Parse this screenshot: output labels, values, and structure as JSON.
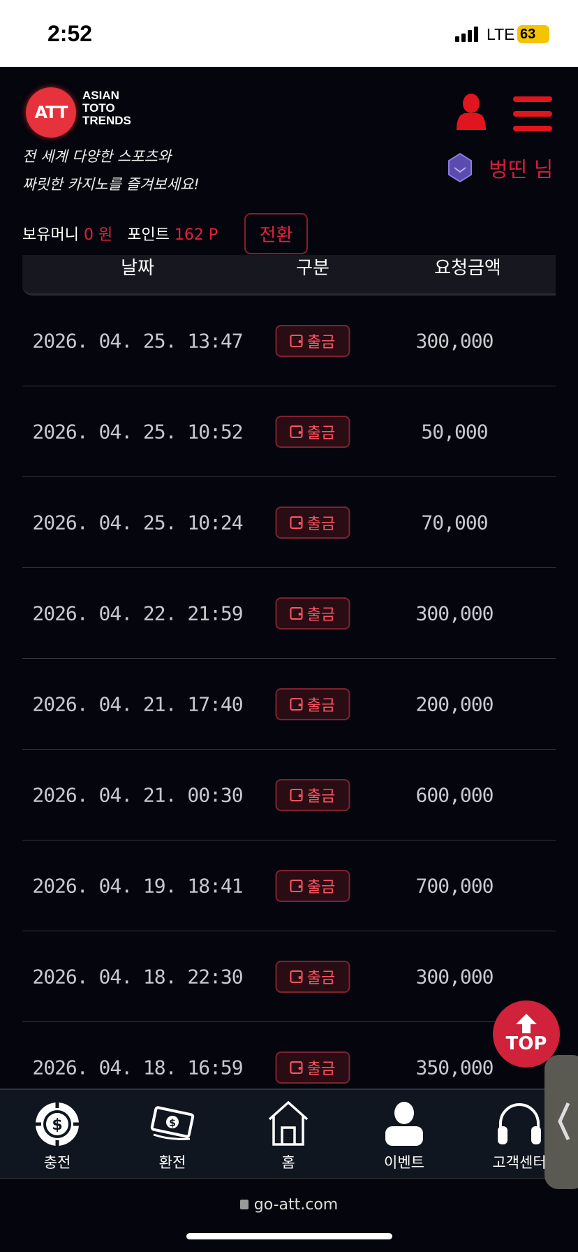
{
  "status": {
    "time": "2:52",
    "network": "LTE",
    "battery": "63"
  },
  "header": {
    "logo_mark": "ATT",
    "logo_lines": [
      "ASIAN",
      "TOTO",
      "TRENDS"
    ],
    "tagline": [
      "전 세계 다양한 스포츠와",
      "짜릿한 카지노를 즐겨보세요!"
    ],
    "nickname": "벙띤 님"
  },
  "balance": {
    "money_label": "보유머니",
    "money_value": "0 원",
    "point_label": "포인트",
    "point_value": "162 P",
    "convert_label": "전환"
  },
  "table": {
    "headers": [
      "날짜",
      "구분",
      "요청금액"
    ],
    "rows": [
      {
        "date": "2026. 04. 25. 13:47",
        "type": "출금",
        "amount": "300,000"
      },
      {
        "date": "2026. 04. 25. 10:52",
        "type": "출금",
        "amount": "50,000"
      },
      {
        "date": "2026. 04. 25. 10:24",
        "type": "출금",
        "amount": "70,000"
      },
      {
        "date": "2026. 04. 22. 21:59",
        "type": "출금",
        "amount": "300,000"
      },
      {
        "date": "2026. 04. 21. 17:40",
        "type": "출금",
        "amount": "200,000"
      },
      {
        "date": "2026. 04. 21. 00:30",
        "type": "출금",
        "amount": "600,000"
      },
      {
        "date": "2026. 04. 19. 18:41",
        "type": "출금",
        "amount": "700,000"
      },
      {
        "date": "2026. 04. 18. 22:30",
        "type": "출금",
        "amount": "300,000"
      },
      {
        "date": "2026. 04. 18. 16:59",
        "type": "출금",
        "amount": "350,000"
      }
    ]
  },
  "top_label": "TOP",
  "nav": [
    {
      "label": "충전",
      "icon": "casino-chip-icon"
    },
    {
      "label": "환전",
      "icon": "money-icon"
    },
    {
      "label": "홈",
      "icon": "home-icon"
    },
    {
      "label": "이벤트",
      "icon": "person-icon"
    },
    {
      "label": "고객센터",
      "icon": "headset-icon"
    }
  ],
  "url": "go-att.com",
  "colors": {
    "accent": "#e3213a",
    "background": "#05050d"
  }
}
